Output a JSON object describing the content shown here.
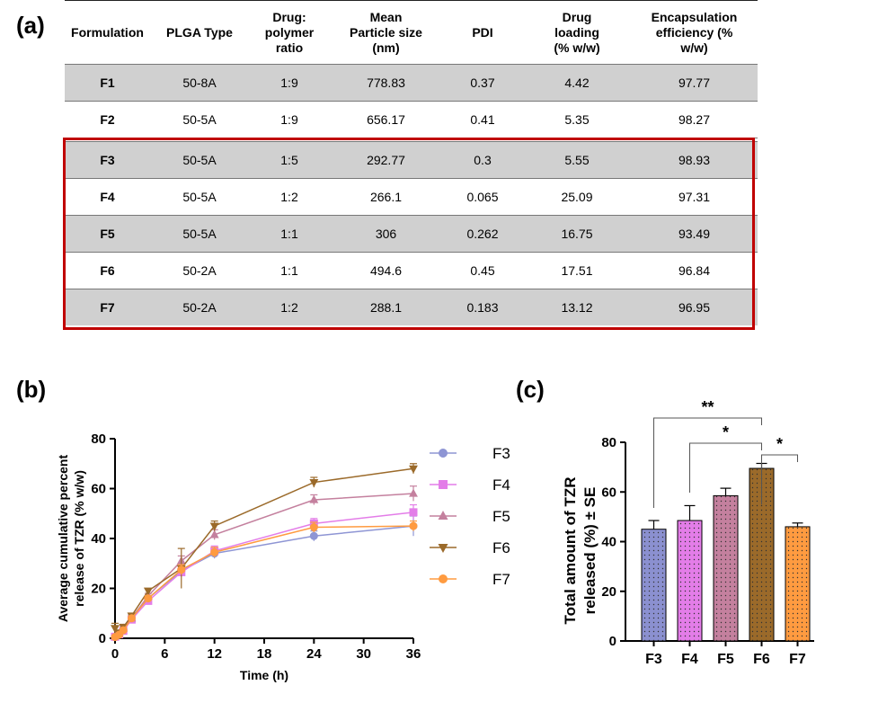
{
  "panel_labels": {
    "a": "(a)",
    "b": "(b)",
    "c": "(c)"
  },
  "table": {
    "headers": [
      "Formulation",
      "PLGA Type",
      "Drug: polymer ratio",
      "Mean Particle size (nm)",
      "PDI",
      "Drug loading (% w/w)",
      "Encapsulation efficiency (% w/w)"
    ],
    "header_lines": [
      [
        "Formulation"
      ],
      [
        "PLGA Type"
      ],
      [
        "Drug:",
        "polymer",
        "ratio"
      ],
      [
        "Mean",
        "Particle size",
        "(nm)"
      ],
      [
        "PDI"
      ],
      [
        "Drug",
        "loading",
        "(% w/w)"
      ],
      [
        "Encapsulation",
        "efficiency (%",
        "w/w)"
      ]
    ],
    "rows": [
      [
        "F1",
        "50-8A",
        "1:9",
        "778.83",
        "0.37",
        "4.42",
        "97.77"
      ],
      [
        "F2",
        "50-5A",
        "1:9",
        "656.17",
        "0.41",
        "5.35",
        "98.27"
      ],
      [
        "F3",
        "50-5A",
        "1:5",
        "292.77",
        "0.3",
        "5.55",
        "98.93"
      ],
      [
        "F4",
        "50-5A",
        "1:2",
        "266.1",
        "0.065",
        "25.09",
        "97.31"
      ],
      [
        "F5",
        "50-5A",
        "1:1",
        "306",
        "0.262",
        "16.75",
        "93.49"
      ],
      [
        "F6",
        "50-2A",
        "1:1",
        "494.6",
        "0.45",
        "17.51",
        "96.84"
      ],
      [
        "F7",
        "50-2A",
        "1:2",
        "288.1",
        "0.183",
        "13.12",
        "96.95"
      ]
    ],
    "highlighted_rows": [
      "F3",
      "F4",
      "F5",
      "F6",
      "F7"
    ],
    "highlight_color": "#c00000"
  },
  "chart_data": [
    {
      "type": "line",
      "panel": "b",
      "xlabel": "Time (h)",
      "ylabel": "Average cumulative percent release of TZR (% w/w)",
      "xlim": [
        0,
        36
      ],
      "ylim": [
        0,
        80
      ],
      "xticks": [
        "0",
        "6",
        "12",
        "18",
        "24",
        "30",
        "36"
      ],
      "yticks": [
        "0",
        "20",
        "40",
        "60",
        "80"
      ],
      "x": [
        0,
        0.5,
        1,
        2,
        4,
        8,
        12,
        24,
        36
      ],
      "legend_position": "right",
      "series": [
        {
          "name": "F3",
          "color": "#8e95d4",
          "marker": "circle",
          "values": [
            0.5,
            1.5,
            3.5,
            8.5,
            16,
            27,
            34,
            41,
            45
          ],
          "errors": [
            0.5,
            0.5,
            1,
            1,
            1,
            2,
            2,
            2,
            4
          ]
        },
        {
          "name": "F4",
          "color": "#e37de8",
          "marker": "square",
          "values": [
            0.6,
            1.6,
            3,
            7.5,
            15,
            26.5,
            35,
            46,
            50.5
          ],
          "errors": [
            0.5,
            0.5,
            1,
            1,
            1,
            2,
            2,
            2,
            3
          ]
        },
        {
          "name": "F5",
          "color": "#c4809e",
          "marker": "triangle-up",
          "values": [
            0.8,
            2,
            4,
            8,
            17,
            31,
            41.5,
            55.5,
            58
          ],
          "errors": [
            0.5,
            0.5,
            1,
            1,
            1,
            2,
            2,
            2,
            3
          ]
        },
        {
          "name": "F6",
          "color": "#9b6a2a",
          "marker": "triangle-down",
          "values": [
            4,
            2.2,
            4.5,
            9,
            19,
            28,
            45,
            62.5,
            68
          ],
          "errors": [
            2,
            0.5,
            1,
            1,
            1,
            8,
            2,
            2,
            2
          ]
        },
        {
          "name": "F7",
          "color": "#ff9b40",
          "marker": "circle",
          "values": [
            0.5,
            1.4,
            3.2,
            8,
            16,
            27.5,
            34.5,
            44.5,
            45
          ],
          "errors": [
            0.5,
            0.5,
            1,
            1,
            1,
            2,
            2,
            2,
            2
          ]
        }
      ]
    },
    {
      "type": "bar",
      "panel": "c",
      "ylabel": "Total amount of TZR released (%) ± SE",
      "ylim": [
        0,
        80
      ],
      "yticks": [
        "0",
        "20",
        "40",
        "60",
        "80"
      ],
      "categories": [
        "F3",
        "F4",
        "F5",
        "F6",
        "F7"
      ],
      "values": [
        45,
        48.5,
        58.5,
        69.5,
        46
      ],
      "errors": [
        3.5,
        6,
        3,
        2,
        1.5
      ],
      "colors": [
        "#8b90d0",
        "#e37de8",
        "#c4809e",
        "#9b6a2a",
        "#ff9b40"
      ],
      "significance": [
        {
          "from": "F3",
          "to": "F6",
          "label": "**"
        },
        {
          "from": "F4",
          "to": "F6",
          "label": "*"
        },
        {
          "from": "F6",
          "to": "F7",
          "label": "*"
        }
      ]
    }
  ]
}
